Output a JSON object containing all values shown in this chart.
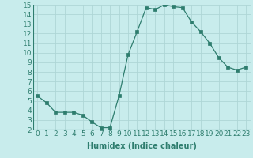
{
  "x": [
    0,
    1,
    2,
    3,
    4,
    5,
    6,
    7,
    8,
    9,
    10,
    11,
    12,
    13,
    14,
    15,
    16,
    17,
    18,
    19,
    20,
    21,
    22,
    23
  ],
  "y": [
    5.5,
    4.8,
    3.8,
    3.8,
    3.8,
    3.5,
    2.8,
    2.2,
    2.2,
    5.5,
    9.8,
    12.2,
    14.7,
    14.5,
    15.0,
    14.8,
    14.7,
    13.2,
    12.2,
    11.0,
    9.5,
    8.5,
    8.2,
    8.5
  ],
  "line_color": "#2e7d6e",
  "marker": "s",
  "marker_size": 2.2,
  "xlabel": "Humidex (Indice chaleur)",
  "xlim": [
    -0.5,
    23.5
  ],
  "ylim": [
    2,
    15
  ],
  "yticks": [
    2,
    3,
    4,
    5,
    6,
    7,
    8,
    9,
    10,
    11,
    12,
    13,
    14,
    15
  ],
  "xticks": [
    0,
    1,
    2,
    3,
    4,
    5,
    6,
    7,
    8,
    9,
    10,
    11,
    12,
    13,
    14,
    15,
    16,
    17,
    18,
    19,
    20,
    21,
    22,
    23
  ],
  "bg_color": "#c8ecec",
  "grid_color": "#aed6d6",
  "tick_color": "#2e7d6e",
  "xlabel_fontsize": 7,
  "tick_fontsize": 6.5
}
